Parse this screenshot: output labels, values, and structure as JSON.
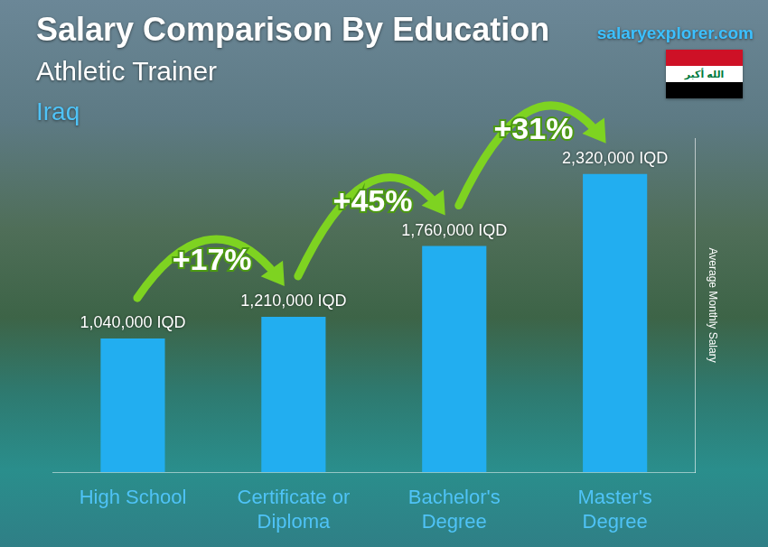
{
  "chart_data": {
    "type": "bar",
    "title": "Salary Comparison By Education",
    "subtitle": "Athletic Trainer",
    "location": "Iraq",
    "source": "salaryexplorer.com",
    "flag_text": "الله أكبر",
    "y_label": "Average Monthly Salary",
    "categories": [
      "High School",
      "Certificate or Diploma",
      "Bachelor's Degree",
      "Master's Degree"
    ],
    "values": [
      1040000,
      1210000,
      1760000,
      2320000
    ],
    "value_labels": [
      "1,040,000 IQD",
      "1,210,000 IQD",
      "1,760,000 IQD",
      "2,320,000 IQD"
    ],
    "color": "#22aef0",
    "ylim": [
      0,
      2600000
    ],
    "grid": false,
    "tick_labels": "x",
    "data_labels": true,
    "annotations": [
      {
        "text": "+17%",
        "from": "High School",
        "to": "Certificate or Diploma"
      },
      {
        "text": "+45%",
        "from": "Certificate or Diploma",
        "to": "Bachelor's Degree"
      },
      {
        "text": "+31%",
        "from": "Bachelor's Degree",
        "to": "Master's Degree"
      }
    ]
  }
}
